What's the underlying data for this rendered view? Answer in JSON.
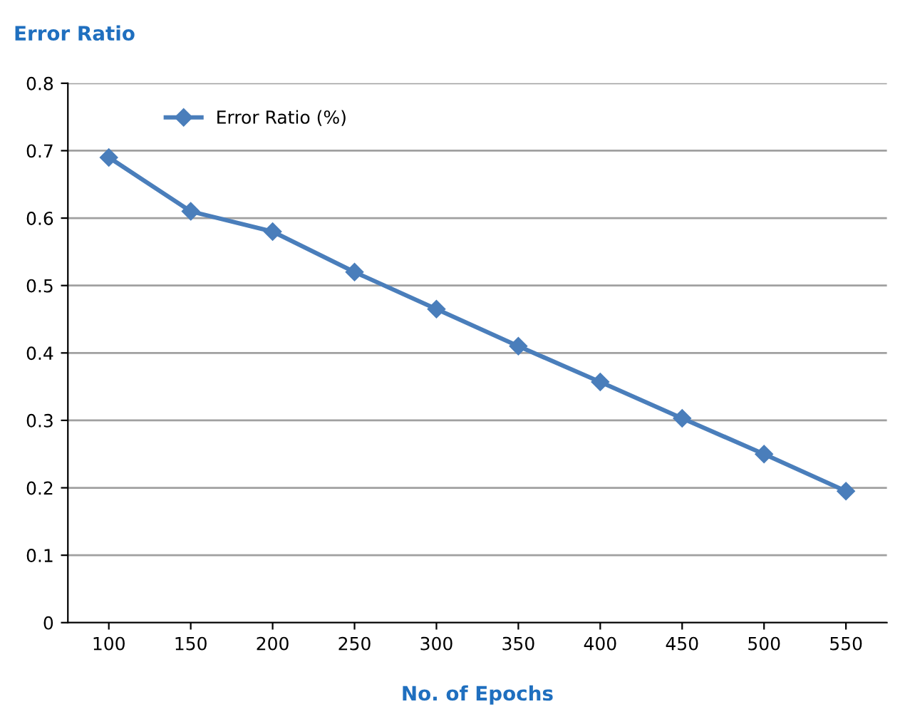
{
  "chart_data": {
    "type": "line",
    "ylabel": "Error Ratio",
    "xlabel": "No. of Epochs",
    "categories": [
      "100",
      "150",
      "200",
      "250",
      "300",
      "350",
      "400",
      "450",
      "500",
      "550"
    ],
    "series": [
      {
        "name": "Error Ratio (%)",
        "color": "#4a7ebb",
        "values": [
          0.69,
          0.61,
          0.58,
          0.52,
          0.465,
          0.41,
          0.357,
          0.303,
          0.25,
          0.195
        ]
      }
    ],
    "ylim": [
      0,
      0.8
    ],
    "yticks": [
      0,
      0.1,
      0.2,
      0.3,
      0.4,
      0.5,
      0.6,
      0.7,
      0.8
    ],
    "grid": "y",
    "legend": "top left",
    "marker": "diamond",
    "line_style": "solid"
  }
}
